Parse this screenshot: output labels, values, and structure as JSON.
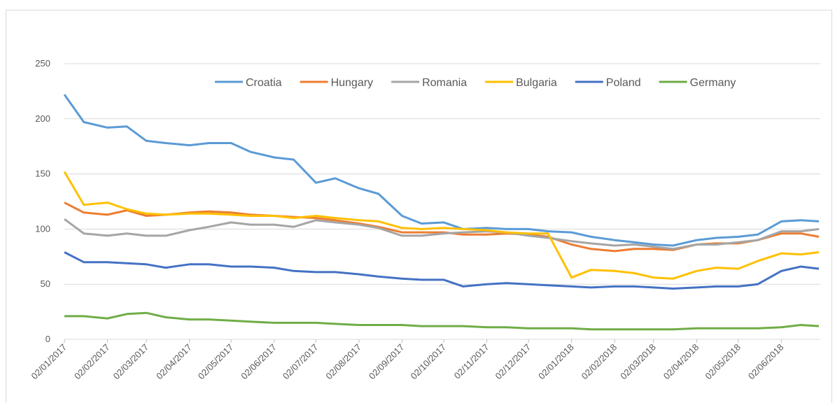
{
  "chart_data": {
    "type": "line",
    "x": [
      "02/01/2017",
      "16/01/2017",
      "02/02/2017",
      "16/02/2017",
      "02/03/2017",
      "16/03/2017",
      "02/04/2017",
      "16/04/2017",
      "02/05/2017",
      "16/05/2017",
      "02/06/2017",
      "16/06/2017",
      "02/07/2017",
      "16/07/2017",
      "02/08/2017",
      "16/08/2017",
      "02/09/2017",
      "16/09/2017",
      "02/10/2017",
      "16/10/2017",
      "02/11/2017",
      "16/11/2017",
      "02/12/2017",
      "16/12/2017",
      "02/01/2018",
      "16/01/2018",
      "02/02/2018",
      "16/02/2018",
      "02/03/2018",
      "16/03/2018",
      "02/04/2018",
      "16/04/2018",
      "02/05/2018",
      "16/05/2018",
      "02/06/2018",
      "16/06/2018",
      "29/06/2018"
    ],
    "series": [
      {
        "name": "Croatia",
        "color": "#5b9bd5",
        "values": [
          222,
          197,
          192,
          193,
          180,
          178,
          176,
          178,
          178,
          170,
          165,
          163,
          142,
          146,
          137,
          132,
          112,
          105,
          106,
          100,
          101,
          100,
          100,
          98,
          97,
          93,
          90,
          88,
          86,
          85,
          90,
          92,
          93,
          95,
          107,
          108,
          107
        ]
      },
      {
        "name": "Hungary",
        "color": "#ed7d31",
        "values": [
          124,
          115,
          113,
          117,
          112,
          113,
          115,
          116,
          115,
          113,
          112,
          111,
          110,
          108,
          105,
          102,
          97,
          97,
          97,
          95,
          95,
          96,
          95,
          93,
          86,
          82,
          80,
          82,
          82,
          81,
          86,
          87,
          87,
          90,
          96,
          96,
          93
        ]
      },
      {
        "name": "Romania",
        "color": "#a5a5a5",
        "values": [
          109,
          96,
          94,
          96,
          94,
          94,
          99,
          102,
          106,
          104,
          104,
          102,
          108,
          106,
          104,
          101,
          94,
          94,
          96,
          97,
          98,
          97,
          94,
          92,
          89,
          87,
          85,
          86,
          84,
          82,
          86,
          86,
          88,
          90,
          98,
          98,
          100
        ]
      },
      {
        "name": "Bulgaria",
        "color": "#ffc000",
        "values": [
          152,
          122,
          124,
          118,
          114,
          113,
          114,
          114,
          113,
          112,
          112,
          110,
          112,
          110,
          108,
          107,
          101,
          100,
          101,
          100,
          99,
          97,
          96,
          96,
          56,
          63,
          62,
          60,
          56,
          55,
          62,
          65,
          64,
          71,
          78,
          77,
          79
        ]
      },
      {
        "name": "Poland",
        "color": "#4472c4",
        "values": [
          79,
          70,
          70,
          69,
          68,
          65,
          68,
          68,
          66,
          66,
          65,
          62,
          61,
          61,
          59,
          57,
          55,
          54,
          54,
          48,
          50,
          51,
          50,
          49,
          48,
          47,
          48,
          48,
          47,
          46,
          47,
          48,
          48,
          50,
          62,
          66,
          64
        ]
      },
      {
        "name": "Germany",
        "color": "#70ad47",
        "values": [
          21,
          21,
          19,
          23,
          24,
          20,
          18,
          18,
          17,
          16,
          15,
          15,
          15,
          14,
          13,
          13,
          13,
          12,
          12,
          12,
          11,
          11,
          10,
          10,
          10,
          9,
          9,
          9,
          9,
          9,
          10,
          10,
          10,
          10,
          11,
          13,
          12
        ]
      }
    ],
    "xlim": [
      "02/01/2017",
      "29/06/2018"
    ],
    "xticks": [
      "02/01/2017",
      "02/02/2017",
      "02/03/2017",
      "02/04/2017",
      "02/05/2017",
      "02/06/2017",
      "02/07/2017",
      "02/08/2017",
      "02/09/2017",
      "02/10/2017",
      "02/11/2017",
      "02/12/2017",
      "02/01/2018",
      "02/02/2018",
      "02/03/2018",
      "02/04/2018",
      "02/05/2018",
      "02/06/2018"
    ],
    "ylim": [
      0,
      250
    ],
    "yticks": [
      0,
      50,
      100,
      150,
      200,
      250
    ],
    "grid": true,
    "legend": "top-right"
  }
}
